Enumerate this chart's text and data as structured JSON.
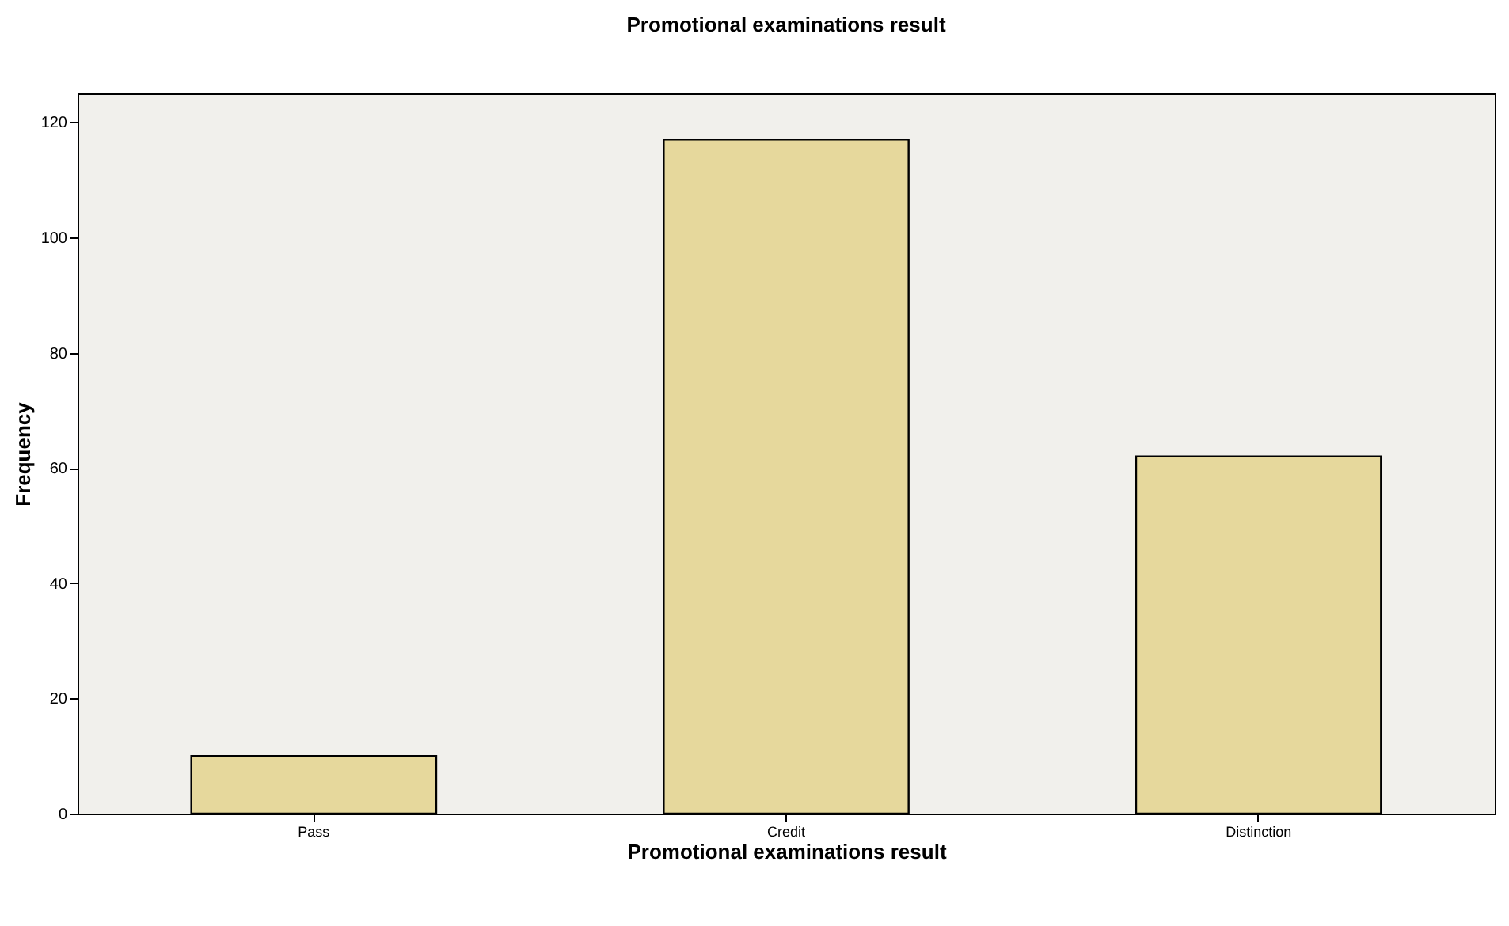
{
  "chart_data": {
    "type": "bar",
    "title": "Promotional examinations result",
    "xlabel": "Promotional examinations result",
    "ylabel": "Frequency",
    "categories": [
      "Pass",
      "Credit",
      "Distinction"
    ],
    "values": [
      10,
      117,
      62
    ],
    "color": "#e6d89c",
    "ylim": [
      0,
      125
    ],
    "yticks": [
      0,
      20,
      40,
      60,
      80,
      100,
      120
    ],
    "grid": false
  }
}
